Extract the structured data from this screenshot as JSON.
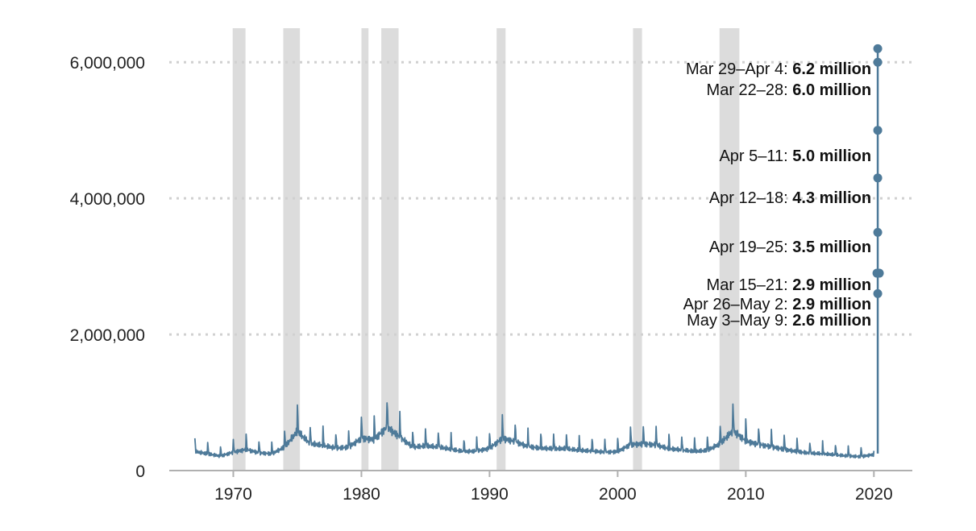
{
  "chart_data": {
    "type": "line",
    "title": "",
    "xlabel": "",
    "ylabel": "",
    "xlim": [
      1965,
      2023
    ],
    "ylim": [
      0,
      6500000
    ],
    "grid": true,
    "y_ticks": [
      {
        "value": 0,
        "label": "0"
      },
      {
        "value": 2000000,
        "label": "2,000,000"
      },
      {
        "value": 4000000,
        "label": "4,000,000"
      },
      {
        "value": 6000000,
        "label": "6,000,000"
      }
    ],
    "x_ticks": [
      {
        "value": 1970,
        "label": "1970"
      },
      {
        "value": 1980,
        "label": "1980"
      },
      {
        "value": 1990,
        "label": "1990"
      },
      {
        "value": 2000,
        "label": "2000"
      },
      {
        "value": 2010,
        "label": "2010"
      },
      {
        "value": 2020,
        "label": "2020"
      }
    ],
    "recessions": [
      [
        1969.95,
        1970.95
      ],
      [
        1973.9,
        1975.2
      ],
      [
        1980.0,
        1980.55
      ],
      [
        1981.55,
        1982.9
      ],
      [
        1990.55,
        1991.25
      ],
      [
        2001.2,
        2001.9
      ],
      [
        2007.95,
        2009.5
      ]
    ],
    "series": [
      {
        "color": "#4e7a99",
        "points": [
          [
            1967.0,
            340000
          ],
          [
            1968.0,
            300000
          ],
          [
            1969.0,
            260000
          ],
          [
            1970.0,
            330000
          ],
          [
            1971.0,
            380000
          ],
          [
            1972.0,
            320000
          ],
          [
            1973.0,
            300000
          ],
          [
            1974.0,
            420000
          ],
          [
            1975.0,
            700000
          ],
          [
            1976.0,
            480000
          ],
          [
            1977.0,
            450000
          ],
          [
            1978.0,
            400000
          ],
          [
            1979.0,
            420000
          ],
          [
            1980.0,
            580000
          ],
          [
            1981.0,
            560000
          ],
          [
            1982.0,
            780000
          ],
          [
            1983.0,
            600000
          ],
          [
            1984.0,
            420000
          ],
          [
            1985.0,
            440000
          ],
          [
            1986.0,
            420000
          ],
          [
            1987.0,
            380000
          ],
          [
            1988.0,
            340000
          ],
          [
            1989.0,
            350000
          ],
          [
            1990.0,
            400000
          ],
          [
            1991.0,
            580000
          ],
          [
            1992.0,
            520000
          ],
          [
            1993.0,
            430000
          ],
          [
            1994.0,
            400000
          ],
          [
            1995.0,
            390000
          ],
          [
            1996.0,
            390000
          ],
          [
            1997.0,
            360000
          ],
          [
            1998.0,
            350000
          ],
          [
            1999.0,
            330000
          ],
          [
            2000.0,
            340000
          ],
          [
            2001.0,
            470000
          ],
          [
            2002.0,
            480000
          ],
          [
            2003.0,
            460000
          ],
          [
            2004.0,
            390000
          ],
          [
            2005.0,
            370000
          ],
          [
            2006.0,
            340000
          ],
          [
            2007.0,
            360000
          ],
          [
            2008.0,
            480000
          ],
          [
            2009.0,
            720000
          ],
          [
            2010.0,
            530000
          ],
          [
            2011.0,
            470000
          ],
          [
            2012.0,
            430000
          ],
          [
            2013.0,
            380000
          ],
          [
            2014.0,
            340000
          ],
          [
            2015.0,
            310000
          ],
          [
            2016.0,
            300000
          ],
          [
            2017.0,
            280000
          ],
          [
            2018.0,
            260000
          ],
          [
            2019.0,
            250000
          ],
          [
            2020.0,
            290000
          ]
        ]
      }
    ],
    "highlight_line": {
      "color": "#4e7a99",
      "x": 2020.3,
      "from": 250000,
      "to": 6200000
    },
    "highlight_points": [
      {
        "label": "Mar 15–21: ",
        "value_label": "2.9 million",
        "value": 2900000
      },
      {
        "label": "Mar 22–28: ",
        "value_label": "6.0 million",
        "value": 6000000
      },
      {
        "label": "Mar 29–Apr 4: ",
        "value_label": "6.2 million",
        "value": 6200000
      },
      {
        "label": "Apr 5–11: ",
        "value_label": "5.0 million",
        "value": 5000000
      },
      {
        "label": "Apr 12–18: ",
        "value_label": "4.3 million",
        "value": 4300000
      },
      {
        "label": "Apr 19–25: ",
        "value_label": "3.5 million",
        "value": 3500000
      },
      {
        "label": "Apr 26–May 2: ",
        "value_label": "2.9 million",
        "value": 2900000
      },
      {
        "label": "May 3–May 9: ",
        "value_label": "2.6 million",
        "value": 2600000
      }
    ]
  }
}
